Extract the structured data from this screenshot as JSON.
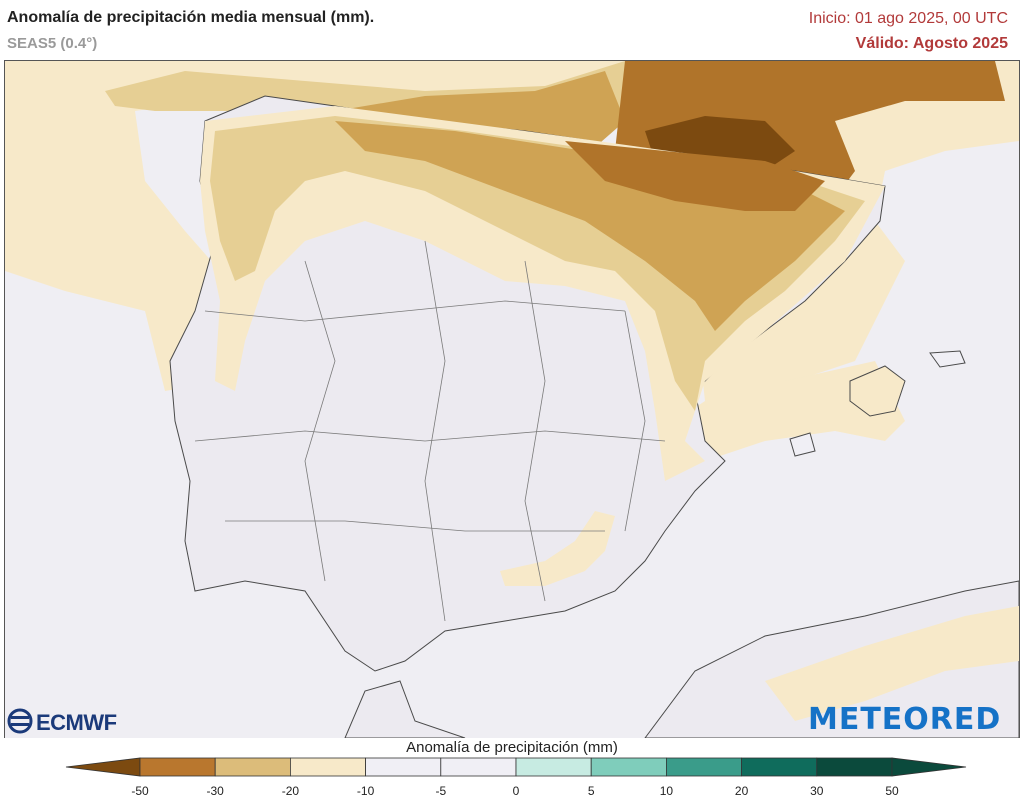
{
  "header": {
    "title": "Anomalía de precipitación media mensual (mm).",
    "subtitle": "SEAS5 (0.4°)",
    "init": "Inicio: 01 ago 2025, 00 UTC",
    "valid": "Válido: Agosto 2025"
  },
  "logos": {
    "ecmwf": "ECMWF",
    "meteored": "METEORED"
  },
  "legend": {
    "title": "Anomalía de precipitación (mm)",
    "ticks": [
      "-50",
      "-30",
      "-20",
      "-10",
      "-5",
      "0",
      "5",
      "10",
      "20",
      "30",
      "50"
    ],
    "colors": [
      "#7c4a10",
      "#b9772e",
      "#dcbc7a",
      "#f7e9c9",
      "#f0eff5",
      "#f0eff5",
      "#c7ebe2",
      "#7fcdbb",
      "#3a9c8a",
      "#0f6c5c",
      "#0b4a3c"
    ]
  },
  "map": {
    "colors": {
      "sea": "#efeef3",
      "land": "#eceaf0",
      "dry_5": "#f7e9c9",
      "dry_10": "#e6cf94",
      "dry_20": "#cfa354",
      "dry_30": "#b0742a",
      "dry_50": "#7c4a10"
    }
  }
}
